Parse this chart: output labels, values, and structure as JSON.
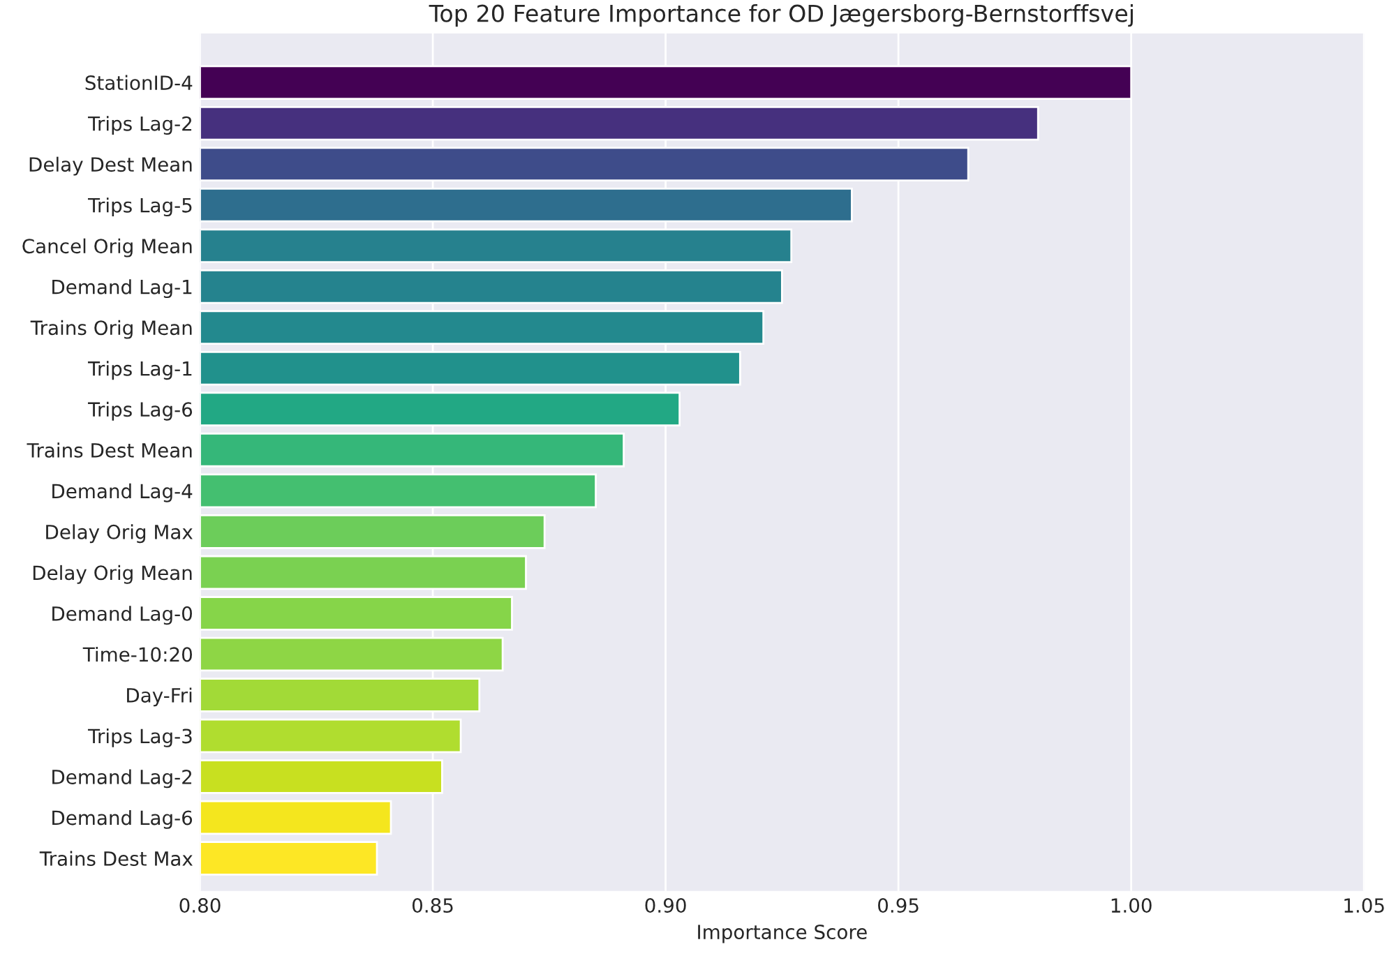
{
  "chart_data": {
    "type": "bar",
    "orientation": "horizontal",
    "title": "Top 20 Feature Importance for OD Jægersborg-Bernstorffsvej",
    "xlabel": "Importance Score",
    "categories": [
      "StationID-4",
      "Trips Lag-2",
      "Delay Dest Mean",
      "Trips Lag-5",
      "Cancel Orig Mean",
      "Demand Lag-1",
      "Trains Orig Mean",
      "Trips Lag-1",
      "Trips Lag-6",
      "Trains Dest Mean",
      "Demand Lag-4",
      "Delay Orig Max",
      "Delay Orig Mean",
      "Demand Lag-0",
      "Time-10:20",
      "Day-Fri",
      "Trips Lag-3",
      "Demand Lag-2",
      "Demand Lag-6",
      "Trains Dest Max"
    ],
    "values": [
      1.0,
      0.98,
      0.965,
      0.94,
      0.927,
      0.925,
      0.921,
      0.916,
      0.903,
      0.891,
      0.885,
      0.874,
      0.87,
      0.867,
      0.865,
      0.86,
      0.856,
      0.852,
      0.841,
      0.838
    ],
    "colors": [
      "#440154",
      "#46307e",
      "#3e4c8a",
      "#2e6e8e",
      "#26818e",
      "#25838e",
      "#23898e",
      "#21918c",
      "#22a884",
      "#35b779",
      "#44bf70",
      "#6ccd5a",
      "#7ad151",
      "#86d549",
      "#8ed645",
      "#a2da37",
      "#b0dd2f",
      "#c8e020",
      "#f4e61e",
      "#fde725"
    ],
    "xlim": [
      0.8,
      1.05
    ],
    "xticks": [
      {
        "value": 0.8,
        "label": "0.80"
      },
      {
        "value": 0.85,
        "label": "0.85"
      },
      {
        "value": 0.9,
        "label": "0.90"
      },
      {
        "value": 0.95,
        "label": "0.95"
      },
      {
        "value": 1.0,
        "label": "1.00"
      },
      {
        "value": 1.05,
        "label": "1.05"
      }
    ],
    "grid": "x"
  }
}
